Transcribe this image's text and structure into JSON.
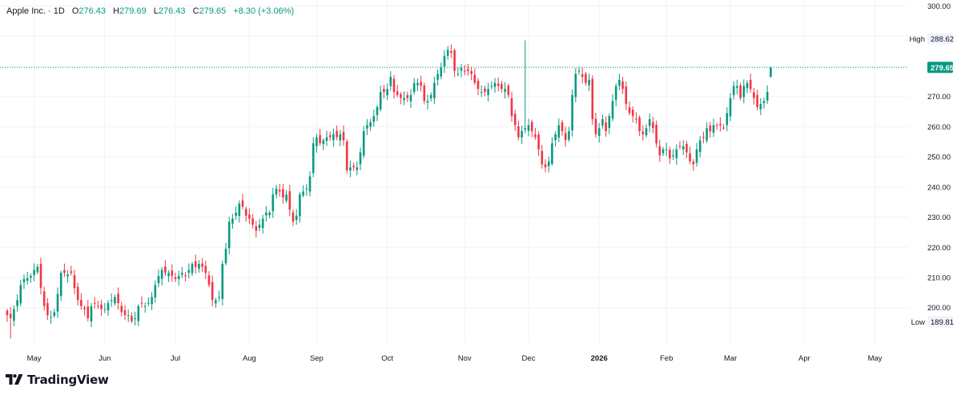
{
  "legend": {
    "symbol": "Apple Inc. · 1D",
    "o_label": "O",
    "o_value": "276.43",
    "h_label": "H",
    "h_value": "279.69",
    "l_label": "L",
    "l_value": "276.43",
    "c_label": "C",
    "c_value": "279.65",
    "change": "+8.30 (+3.06%)"
  },
  "branding": {
    "name": "TradingView"
  },
  "colors": {
    "up": "#089981",
    "down": "#f23645",
    "grid": "#f2f3f5",
    "last_line": "#089981"
  },
  "chart_data": {
    "type": "candlestick",
    "title": "Apple Inc. · 1D",
    "ylim": [
      188,
      302
    ],
    "y_ticks": [
      "300.00",
      "290.00",
      "280.00",
      "270.00",
      "260.00",
      "250.00",
      "240.00",
      "230.00",
      "220.00",
      "210.00",
      "200.00"
    ],
    "y_tick_values": [
      300,
      290,
      280,
      270,
      260,
      250,
      240,
      230,
      220,
      210,
      200
    ],
    "x_labels": [
      {
        "label": "May",
        "i": 8,
        "bold": false
      },
      {
        "label": "Jun",
        "i": 29,
        "bold": false
      },
      {
        "label": "Jul",
        "i": 50,
        "bold": false
      },
      {
        "label": "Aug",
        "i": 72,
        "bold": false
      },
      {
        "label": "Sep",
        "i": 92,
        "bold": false
      },
      {
        "label": "Oct",
        "i": 113,
        "bold": false
      },
      {
        "label": "Nov",
        "i": 136,
        "bold": false
      },
      {
        "label": "Dec",
        "i": 155,
        "bold": false
      },
      {
        "label": "2026",
        "i": 176,
        "bold": true
      },
      {
        "label": "Feb",
        "i": 196,
        "bold": false
      },
      {
        "label": "Mar",
        "i": 215,
        "bold": false
      },
      {
        "label": "Apr",
        "i": 237,
        "bold": false
      },
      {
        "label": "May",
        "i": 258,
        "bold": false
      }
    ],
    "high_label": "High",
    "high_value": "288.62",
    "high": 288.62,
    "low_label": "Low",
    "low_value": "189.81",
    "low": 189.81,
    "last_value": "279.65",
    "last": 279.65,
    "closes": [
      197.5,
      196.5,
      199.5,
      202.5,
      207.5,
      209.5,
      209.8,
      210.5,
      212.5,
      213.5,
      206.5,
      200.5,
      197.5,
      197,
      198.5,
      204.5,
      211.5,
      211.5,
      211,
      211.5,
      206.5,
      202.5,
      200.5,
      199.5,
      196.5,
      200.5,
      201.5,
      200.5,
      199.5,
      199.5,
      201.5,
      202.5,
      203.5,
      201.5,
      198.5,
      197.5,
      197.5,
      195.5,
      196.5,
      200.5,
      201.5,
      200.5,
      201.5,
      203.5,
      207.5,
      210.5,
      212.5,
      211.5,
      211.5,
      210.5,
      209.5,
      210.5,
      211.5,
      210.5,
      212.5,
      214.5,
      213.5,
      214.5,
      213.5,
      211.5,
      207.5,
      202.5,
      202.5,
      203.5,
      214.5,
      219.5,
      228.5,
      229.5,
      231.5,
      234.5,
      233.5,
      230.5,
      229.5,
      227.5,
      225.5,
      227.5,
      229.5,
      231.5,
      231.5,
      237.5,
      239.5,
      238.5,
      236.5,
      237.5,
      232.5,
      228.5,
      230.5,
      237.5,
      238.5,
      239.5,
      243.5,
      254.5,
      256.5,
      254.5,
      255.5,
      256.5,
      256.5,
      257.5,
      256.5,
      257.5,
      255.5,
      245.5,
      246.5,
      246.5,
      246.5,
      251.5,
      258.5,
      260.5,
      261.5,
      263.5,
      266.5,
      271.5,
      271.5,
      272.5,
      276.5,
      271.5,
      270.5,
      269.5,
      269.5,
      269.5,
      270.5,
      274.5,
      274.5,
      273.5,
      268.5,
      268.5,
      270.5,
      274.5,
      277.5,
      279.5,
      283.5,
      285.5,
      284.5,
      278.5,
      277.5,
      279.5,
      278.5,
      278.5,
      277.5,
      274.5,
      272.5,
      271.5,
      271.5,
      272.5,
      273.5,
      274.5,
      273.5,
      272.5,
      272.5,
      270.5,
      263.5,
      260.5,
      256.5,
      258.5,
      259.5,
      260.5,
      258.5,
      256.5,
      252.5,
      247.5,
      246.5,
      248.5,
      254.5,
      257.5,
      260.5,
      258.5,
      255.5,
      258.5,
      270.5,
      277.5,
      278.5,
      276.5,
      274.5,
      275.5,
      262.5,
      257.5,
      259.5,
      262.5,
      258.5,
      263.5,
      268.5,
      273.5,
      275.5,
      272.5,
      267.5,
      264.5,
      263.5,
      262.5,
      258.5,
      257.5,
      259.5,
      262.5,
      259.5,
      254.5,
      250.5,
      252.5,
      252.5,
      249.5,
      250.5,
      252.5,
      253.5,
      253.5,
      251.5,
      248.5,
      247.5,
      252.5,
      255.5,
      256.5,
      259.5,
      258.5,
      260.5,
      260.5,
      260.5,
      259.5,
      264.5,
      269.5,
      273.5,
      273.5,
      269.5,
      273.5,
      274.5,
      272.5,
      269.5,
      266.5,
      267.5,
      268.5,
      271.5,
      279.65
    ]
  }
}
